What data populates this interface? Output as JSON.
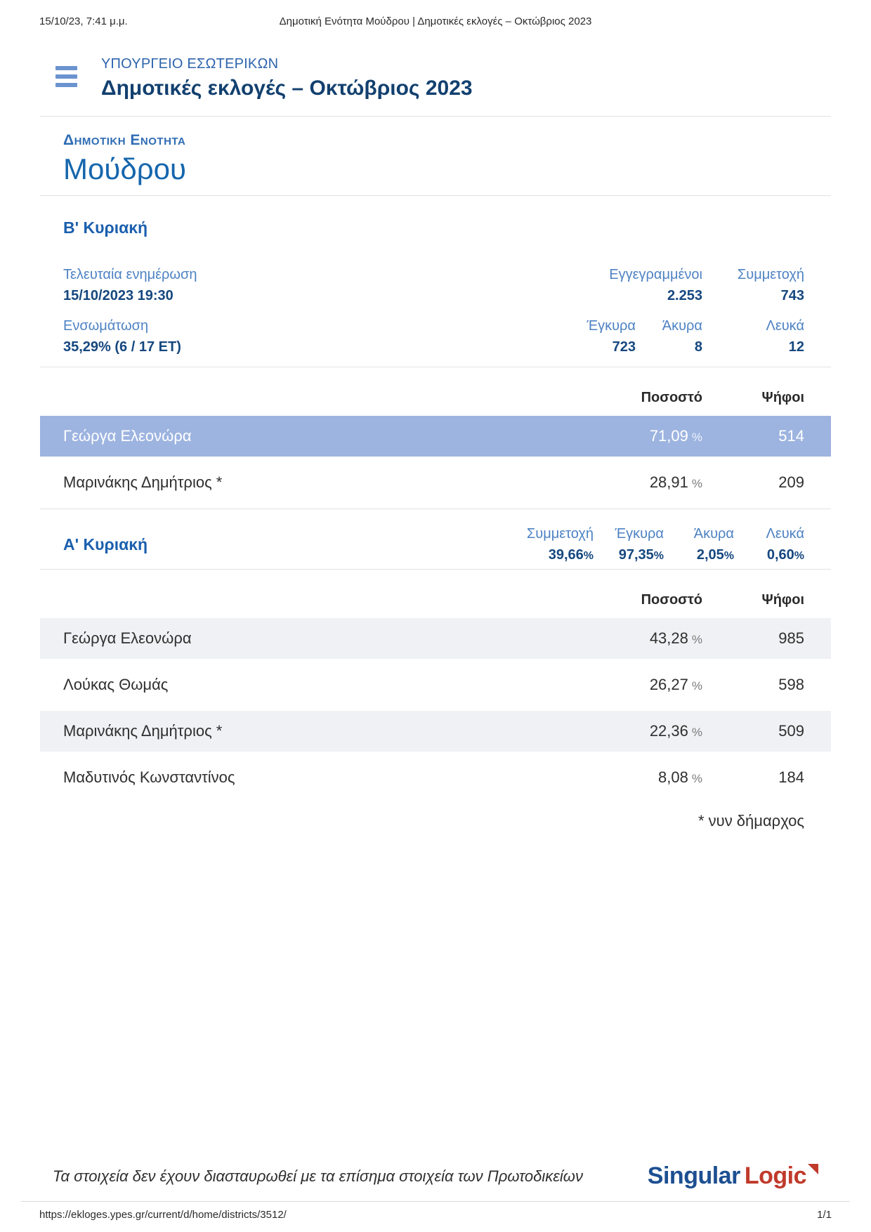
{
  "print_header": {
    "datetime": "15/10/23, 7:41 μ.μ.",
    "title": "Δημοτική Ενότητα Μούδρου | Δημοτικές εκλογές – Οκτώβριος 2023"
  },
  "app_header": {
    "ministry": "ΥΠΟΥΡΓΕΙΟ ΕΣΩΤΕΡΙΚΩΝ",
    "title": "Δημοτικές εκλογές – Οκτώβριος 2023"
  },
  "district": {
    "label": "Δημοτικη Ενοτητα",
    "name": "Μούδρου"
  },
  "colors": {
    "highlight_row": "#9db4e0",
    "alt_row": "#f0f1f4",
    "accent_blue": "#1b5fae",
    "label_blue": "#4d82c3",
    "value_blue": "#15477f",
    "logo_blue": "#1d4f91",
    "logo_red": "#c03a2b"
  },
  "round_b": {
    "title": "Β' Κυριακή",
    "last_update_label": "Τελευταία ενημέρωση",
    "last_update_value": "15/10/2023 19:30",
    "registered_label": "Εγγεγραμμένοι",
    "registered_value": "2.253",
    "participation_label": "Συμμετοχή",
    "participation_value": "743",
    "integration_label": "Ενσωμάτωση",
    "integration_value": "35,29% (6 / 17 ΕΤ)",
    "valid_label": "Έγκυρα",
    "valid_value": "723",
    "invalid_label": "Άκυρα",
    "invalid_value": "8",
    "blank_label": "Λευκά",
    "blank_value": "12",
    "table": {
      "percent_header": "Ποσοστό",
      "votes_header": "Ψήφοι",
      "unit": "%",
      "rows": [
        {
          "name": "Γεώργα Ελεονώρα",
          "percent": "71,09",
          "votes": "514"
        },
        {
          "name": "Μαρινάκης Δημήτριος *",
          "percent": "28,91",
          "votes": "209"
        }
      ]
    }
  },
  "round_a": {
    "title": "Α' Κυριακή",
    "stats": [
      {
        "label": "Συμμετοχή",
        "value": "39,66",
        "unit": "%"
      },
      {
        "label": "Έγκυρα",
        "value": "97,35",
        "unit": "%"
      },
      {
        "label": "Άκυρα",
        "value": "2,05",
        "unit": "%"
      },
      {
        "label": "Λευκά",
        "value": "0,60",
        "unit": "%"
      }
    ],
    "table": {
      "percent_header": "Ποσοστό",
      "votes_header": "Ψήφοι",
      "unit": "%",
      "rows": [
        {
          "name": "Γεώργα Ελεονώρα",
          "percent": "43,28",
          "votes": "985"
        },
        {
          "name": "Λούκας Θωμάς",
          "percent": "26,27",
          "votes": "598"
        },
        {
          "name": "Μαρινάκης Δημήτριος *",
          "percent": "22,36",
          "votes": "509"
        },
        {
          "name": "Μαδυτινός Κωνσταντίνος",
          "percent": "8,08",
          "votes": "184"
        }
      ]
    }
  },
  "footnote": "* νυν δήμαρχος",
  "footer": {
    "disclaimer": "Τα στοιχεία δεν έχουν διασταυρωθεί με τα επίσημα στοιχεία των Πρωτοδικείων",
    "logo_part1": "Singular",
    "logo_part2": "Logic"
  },
  "page_footer": {
    "url": "https://ekloges.ypes.gr/current/d/home/districts/3512/",
    "page_number": "1/1"
  }
}
